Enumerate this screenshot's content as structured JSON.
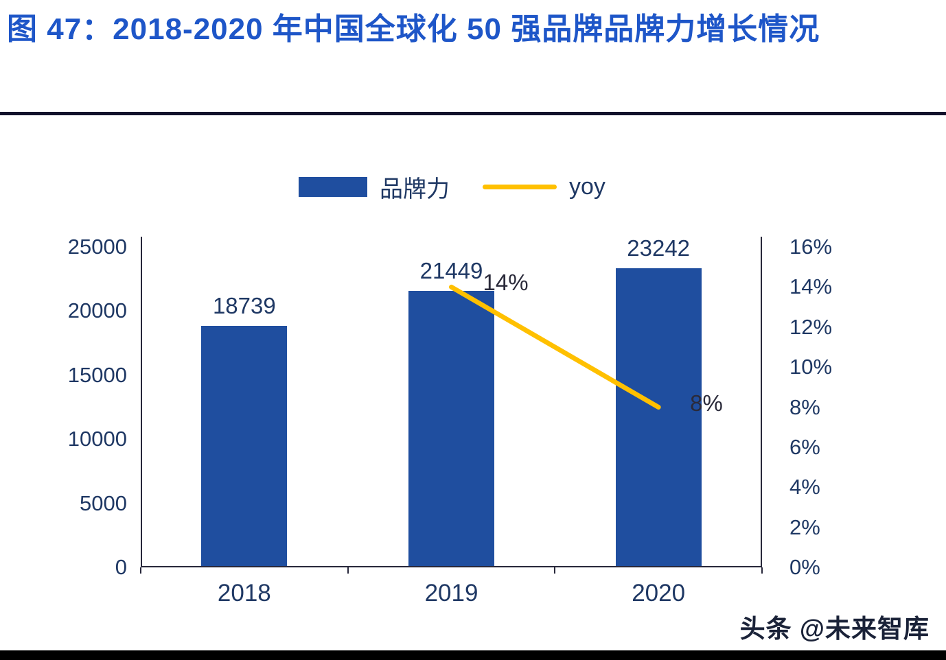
{
  "title": "图 47：2018-2020 年中国全球化 50 强品牌品牌力增长情况",
  "legend": {
    "bar_label": "品牌力",
    "line_label": "yoy"
  },
  "watermark": "头条 @未来智库",
  "colors": {
    "title": "#1E56C8",
    "bar": "#1F4E9F",
    "line": "#FFC000",
    "axis_text": "#1F3864",
    "axis_line": "#27273A"
  },
  "chart_data": {
    "type": "bar",
    "title": "2018-2020 年中国全球化 50 强品牌品牌力增长情况",
    "categories": [
      "2018",
      "2019",
      "2020"
    ],
    "series": [
      {
        "name": "品牌力",
        "type": "bar",
        "axis": "left",
        "values": [
          18739,
          21449,
          23242
        ]
      },
      {
        "name": "yoy",
        "type": "line",
        "axis": "right",
        "unit": "%",
        "values": [
          null,
          14,
          8
        ]
      }
    ],
    "bar_labels": [
      "18739",
      "21449",
      "23242"
    ],
    "line_labels": [
      null,
      "14%",
      "8%"
    ],
    "left_axis": {
      "min": 0,
      "max": 25000,
      "step": 5000,
      "ticks": [
        "25000",
        "20000",
        "15000",
        "10000",
        "5000",
        "0"
      ]
    },
    "right_axis": {
      "min": 0,
      "max": 16,
      "step": 2,
      "ticks": [
        "16%",
        "14%",
        "12%",
        "10%",
        "8%",
        "6%",
        "4%",
        "2%",
        "0%"
      ]
    },
    "legend_position": "top",
    "grid": false
  }
}
